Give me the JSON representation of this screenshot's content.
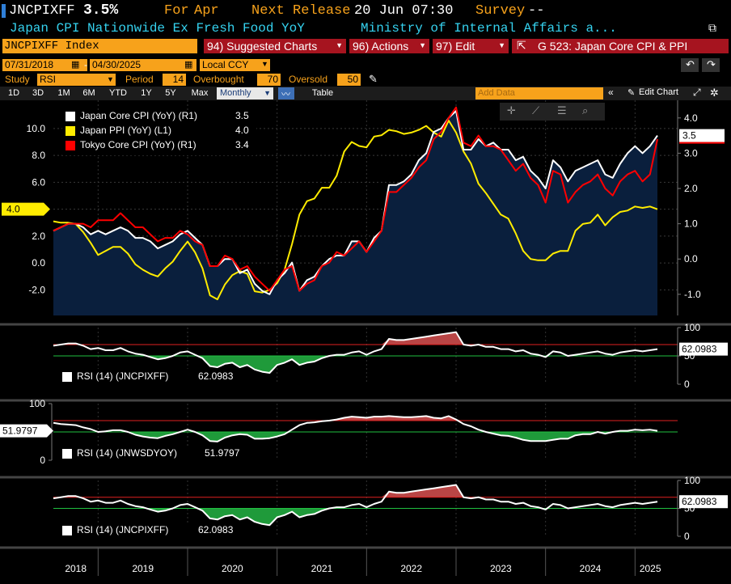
{
  "header": {
    "ticker": "JNCPIXFF",
    "value": "3.5%",
    "for_label": "For",
    "for_value": "Apr",
    "next_label": "Next Release",
    "next_value": "20 Jun 07:30",
    "survey_label": "Survey",
    "survey_value": "--",
    "description": "Japan CPI Nationwide Ex Fresh Food YoY",
    "source": "Ministry of Internal Affairs a..."
  },
  "toolbar": {
    "index_label": "JNCPIXFF Index",
    "suggested": "94) Suggested Charts",
    "actions": "96) Actions",
    "edit": "97) Edit",
    "g_title": "G 523: Japan Core CPI & PPI"
  },
  "controls": {
    "start_date": "07/31/2018",
    "end_date": "04/30/2025",
    "currency": "Local CCY",
    "study_label": "Study",
    "study_value": "RSI",
    "period_label": "Period",
    "period_value": "14",
    "overbought_label": "Overbought",
    "overbought_value": "70",
    "oversold_label": "Oversold",
    "oversold_value": "50"
  },
  "range_bar": {
    "ranges": [
      "1D",
      "3D",
      "1M",
      "6M",
      "YTD",
      "1Y",
      "5Y",
      "Max"
    ],
    "frequency": "Monthly",
    "table_label": "Table",
    "add_data_placeholder": "Add Data",
    "edit_chart": "Edit Chart"
  },
  "colors": {
    "accent": "#f7a21b",
    "japan_core": "#ffffff",
    "japan_ppi": "#ffec00",
    "tokyo_core": "#ff0000",
    "area_fill": "#0a1f3d",
    "rsi_over": "#b94545",
    "rsi_under": "#1f9a3a"
  },
  "chart_data": [
    {
      "type": "line",
      "x": [
        "2018-07",
        "2018-08",
        "2018-09",
        "2018-10",
        "2018-11",
        "2018-12",
        "2019-01",
        "2019-02",
        "2019-03",
        "2019-04",
        "2019-05",
        "2019-06",
        "2019-07",
        "2019-08",
        "2019-09",
        "2019-10",
        "2019-11",
        "2019-12",
        "2020-01",
        "2020-02",
        "2020-03",
        "2020-04",
        "2020-05",
        "2020-06",
        "2020-07",
        "2020-08",
        "2020-09",
        "2020-10",
        "2020-11",
        "2020-12",
        "2021-01",
        "2021-02",
        "2021-03",
        "2021-04",
        "2021-05",
        "2021-06",
        "2021-07",
        "2021-08",
        "2021-09",
        "2021-10",
        "2021-11",
        "2021-12",
        "2022-01",
        "2022-02",
        "2022-03",
        "2022-04",
        "2022-05",
        "2022-06",
        "2022-07",
        "2022-08",
        "2022-09",
        "2022-10",
        "2022-11",
        "2022-12",
        "2023-01",
        "2023-02",
        "2023-03",
        "2023-04",
        "2023-05",
        "2023-06",
        "2023-07",
        "2023-08",
        "2023-09",
        "2023-10",
        "2023-11",
        "2023-12",
        "2024-01",
        "2024-02",
        "2024-03",
        "2024-04",
        "2024-05",
        "2024-06",
        "2024-07",
        "2024-08",
        "2024-09",
        "2024-10",
        "2024-11",
        "2024-12",
        "2025-01",
        "2025-02",
        "2025-03",
        "2025-04"
      ],
      "x_tick_labels": [
        "2018",
        "2019",
        "2020",
        "2021",
        "2022",
        "2023",
        "2024",
        "2025"
      ],
      "series": [
        {
          "name": "Japan Core CPI (YoY) (R1)",
          "legend_value": "3.5",
          "axis": "right",
          "values": [
            0.8,
            0.9,
            1.0,
            1.0,
            0.9,
            0.7,
            0.8,
            0.7,
            0.8,
            0.9,
            0.8,
            0.6,
            0.6,
            0.5,
            0.3,
            0.4,
            0.5,
            0.7,
            0.8,
            0.6,
            0.4,
            -0.2,
            -0.2,
            0.0,
            0.0,
            -0.4,
            -0.3,
            -0.7,
            -0.9,
            -1.0,
            -0.6,
            -0.4,
            -0.1,
            -0.9,
            -0.6,
            -0.5,
            -0.2,
            0.0,
            0.1,
            0.1,
            0.5,
            0.5,
            0.2,
            0.6,
            0.8,
            2.1,
            2.1,
            2.2,
            2.4,
            2.8,
            3.0,
            3.6,
            3.7,
            4.0,
            4.2,
            3.1,
            3.1,
            3.4,
            3.2,
            3.3,
            3.1,
            3.1,
            2.8,
            2.9,
            2.5,
            2.3,
            2.0,
            2.8,
            2.6,
            2.2,
            2.5,
            2.6,
            2.7,
            2.8,
            2.4,
            2.3,
            2.7,
            3.0,
            3.2,
            3.0,
            3.2,
            3.5
          ]
        },
        {
          "name": "Japan PPI (YoY) (L1)",
          "legend_value": "4.0",
          "axis": "left",
          "values": [
            3.1,
            3.0,
            3.0,
            2.9,
            2.3,
            1.5,
            0.6,
            0.9,
            1.2,
            1.2,
            0.7,
            -0.1,
            -0.5,
            -0.8,
            -1.0,
            -0.4,
            0.1,
            0.9,
            1.6,
            0.8,
            -0.4,
            -2.4,
            -2.7,
            -1.6,
            -0.9,
            -0.6,
            -0.8,
            -2.1,
            -2.2,
            -2.0,
            -1.5,
            -0.5,
            1.4,
            3.6,
            4.6,
            4.8,
            5.6,
            5.6,
            6.5,
            8.3,
            9.0,
            8.7,
            8.6,
            9.4,
            9.5,
            9.9,
            9.8,
            9.6,
            9.7,
            9.9,
            10.2,
            9.7,
            9.4,
            10.6,
            9.7,
            8.3,
            7.4,
            5.9,
            5.2,
            4.4,
            3.6,
            3.3,
            2.2,
            0.9,
            0.3,
            0.2,
            0.2,
            0.7,
            0.9,
            0.9,
            2.4,
            2.9,
            3.0,
            3.6,
            2.8,
            3.4,
            3.8,
            3.9,
            4.2,
            4.1,
            4.2,
            4.0
          ]
        },
        {
          "name": "Tokyo Core CPI (YoY) (R1)",
          "legend_value": "3.4",
          "axis": "right",
          "values": [
            0.8,
            0.9,
            1.0,
            1.0,
            1.0,
            0.9,
            1.1,
            1.1,
            1.1,
            1.3,
            1.1,
            0.9,
            0.9,
            0.7,
            0.5,
            0.6,
            0.6,
            0.8,
            0.7,
            0.5,
            0.4,
            -0.2,
            -0.2,
            0.1,
            0.0,
            -0.3,
            -0.2,
            -0.5,
            -0.7,
            -0.9,
            -0.6,
            -0.3,
            -0.2,
            -0.9,
            -0.7,
            -0.6,
            -0.2,
            -0.1,
            0.2,
            0.1,
            0.3,
            0.5,
            0.2,
            0.5,
            0.8,
            1.9,
            1.9,
            2.1,
            2.3,
            2.6,
            2.8,
            3.4,
            3.6,
            4.0,
            4.3,
            3.3,
            3.2,
            3.5,
            3.2,
            3.2,
            3.1,
            2.8,
            2.5,
            2.7,
            2.3,
            2.1,
            1.6,
            2.5,
            2.4,
            1.6,
            1.9,
            2.1,
            2.2,
            2.4,
            2.0,
            1.8,
            2.2,
            2.4,
            2.5,
            2.2,
            2.4,
            3.4
          ]
        }
      ],
      "left_axis": {
        "ylim": [
          -3.9,
          12.1
        ],
        "ticks": [
          "10.0",
          "8.0",
          "6.0",
          "4.0",
          "2.0",
          "0.0",
          "-2.0"
        ],
        "tag": "4.0"
      },
      "right_axis": {
        "ylim": [
          -1.6,
          4.5
        ],
        "ticks": [
          "4.0",
          "3.0",
          "2.0",
          "1.0",
          "0.0",
          "-1.0"
        ],
        "tag": "3.5"
      },
      "legend": "top-left"
    },
    {
      "type": "line",
      "title": "RSI (14) (JNCPIXFF)",
      "value": "62.0983",
      "ylim": [
        0,
        100
      ],
      "ticks": [
        "100",
        "50",
        "0"
      ],
      "overbought": 70,
      "oversold": 50,
      "values": [
        68,
        70,
        72,
        72,
        68,
        62,
        64,
        60,
        60,
        64,
        58,
        54,
        52,
        48,
        44,
        46,
        50,
        56,
        58,
        52,
        46,
        32,
        30,
        36,
        38,
        30,
        34,
        26,
        22,
        20,
        34,
        38,
        44,
        34,
        38,
        40,
        46,
        50,
        52,
        52,
        56,
        58,
        52,
        58,
        62,
        80,
        78,
        78,
        80,
        82,
        84,
        86,
        88,
        90,
        92,
        70,
        68,
        70,
        66,
        66,
        62,
        62,
        58,
        60,
        54,
        52,
        48,
        58,
        56,
        50,
        52,
        54,
        56,
        58,
        54,
        52,
        56,
        58,
        60,
        58,
        60,
        62
      ]
    },
    {
      "type": "line",
      "title": "RSI (14) (JNWSDYOY)",
      "value": "51.9797",
      "ylim": [
        0,
        100
      ],
      "ticks": [
        "100",
        "50",
        "0"
      ],
      "overbought": 70,
      "oversold": 50,
      "values": [
        66,
        64,
        63,
        62,
        58,
        55,
        50,
        51,
        53,
        53,
        50,
        45,
        42,
        40,
        39,
        43,
        46,
        50,
        54,
        50,
        44,
        34,
        33,
        40,
        44,
        46,
        45,
        38,
        38,
        39,
        42,
        46,
        54,
        62,
        66,
        67,
        69,
        70,
        72,
        75,
        77,
        76,
        75,
        77,
        77,
        78,
        77,
        76,
        76,
        77,
        78,
        75,
        74,
        78,
        72,
        64,
        60,
        54,
        50,
        47,
        44,
        43,
        40,
        36,
        34,
        34,
        34,
        36,
        38,
        38,
        44,
        46,
        46,
        50,
        47,
        50,
        52,
        52,
        54,
        53,
        54,
        52
      ]
    },
    {
      "type": "line",
      "title": "RSI (14) (JNCPIXFF)",
      "value": "62.0983",
      "ylim": [
        0,
        100
      ],
      "ticks": [
        "100",
        "50",
        "0"
      ],
      "overbought": 70,
      "oversold": 50,
      "values": [
        68,
        70,
        72,
        72,
        68,
        62,
        64,
        60,
        60,
        64,
        58,
        54,
        52,
        48,
        44,
        46,
        50,
        56,
        58,
        52,
        46,
        32,
        30,
        36,
        38,
        30,
        34,
        26,
        22,
        20,
        34,
        38,
        44,
        34,
        38,
        40,
        46,
        50,
        52,
        52,
        56,
        58,
        52,
        58,
        62,
        80,
        78,
        78,
        80,
        82,
        84,
        86,
        88,
        90,
        92,
        70,
        68,
        70,
        66,
        66,
        62,
        62,
        58,
        60,
        54,
        52,
        48,
        58,
        56,
        50,
        52,
        54,
        56,
        58,
        54,
        52,
        56,
        58,
        60,
        58,
        60,
        62
      ]
    }
  ]
}
